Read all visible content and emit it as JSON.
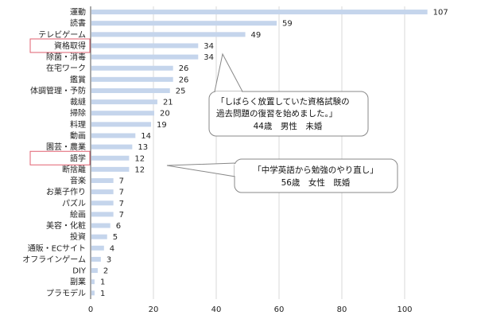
{
  "chart_data": {
    "type": "bar",
    "orientation": "horizontal",
    "categories": [
      "運動",
      "読書",
      "テレビゲーム",
      "資格取得",
      "除菌・消毒",
      "在宅ワーク",
      "鑑賞",
      "体調管理・予防",
      "裁縫",
      "掃除",
      "料理",
      "動画",
      "園芸・農業",
      "語学",
      "断捨離",
      "音楽",
      "お菓子作り",
      "パズル",
      "絵画",
      "美容・化粧",
      "投資",
      "通販・ECサイト",
      "オフラインゲーム",
      "DIY",
      "副業",
      "プラモデル"
    ],
    "values": [
      107,
      59,
      49,
      34,
      34,
      26,
      26,
      25,
      21,
      20,
      19,
      14,
      13,
      12,
      12,
      7,
      7,
      7,
      7,
      6,
      5,
      4,
      3,
      2,
      1,
      1
    ],
    "xlim": [
      0,
      110
    ],
    "xticks": [
      0,
      20,
      40,
      60,
      80,
      100
    ],
    "grid": true,
    "highlighted": [
      "資格取得",
      "語学"
    ],
    "bar_color": "#c5d5ec",
    "highlight_color": "#e06070",
    "annotations": [
      {
        "target": "資格取得",
        "lines": [
          "「しばらく放置していた資格試験の",
          "過去問題の復習を始めました。」",
          "44歳　男性　未婚"
        ]
      },
      {
        "target": "語学",
        "lines": [
          "「中学英語から勉強のやり直し」",
          "56歳　女性　既婚"
        ]
      }
    ]
  }
}
